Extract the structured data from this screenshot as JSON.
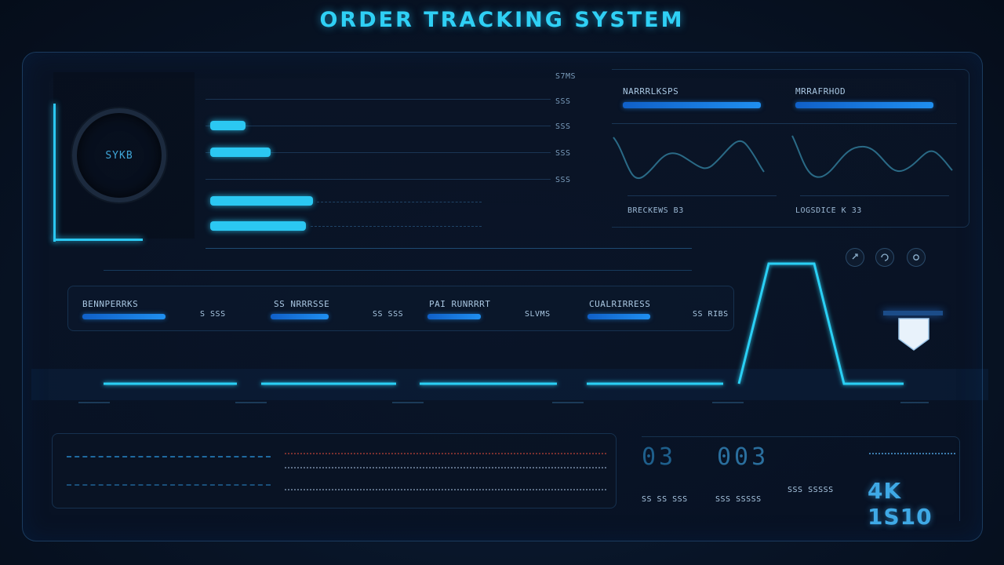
{
  "title": "ORDER TRACKING SYSTEM",
  "gauge": {
    "label": "SYKB"
  },
  "axis_labels": [
    "S7MS",
    "SSS",
    "SSS",
    "SSS",
    "SSS"
  ],
  "progress_bars": [
    {
      "fill": 0.28
    },
    {
      "fill": 0.48
    },
    {
      "fill": 0.82
    },
    {
      "fill": 0.76
    }
  ],
  "metrics": [
    {
      "title": "NARRRLKSPS",
      "caption": "BRECKEWS B3"
    },
    {
      "title": "MRRAFRHOD",
      "caption": "LOGSDICE K 33"
    }
  ],
  "status_cards": [
    {
      "label": "BENNPERRKS",
      "value": "S SSS"
    },
    {
      "label": "SS NRRRSSE",
      "value": "SS SSS"
    },
    {
      "label": "PAI RUNRRRT",
      "value": "SLVMS"
    },
    {
      "label": "CUALRIRRESS",
      "value": "SS RIBS"
    }
  ],
  "controls": {
    "icon1": "link-icon",
    "icon2": "refresh-icon",
    "icon3": "settings-icon"
  },
  "bottom": {
    "digits_a": "03",
    "digits_b": "003",
    "sub_a": "SS SS SSS",
    "sub_b": "SSS SSSSS",
    "sub_c": "SSS SSSSS",
    "big": "4K 1S10"
  }
}
